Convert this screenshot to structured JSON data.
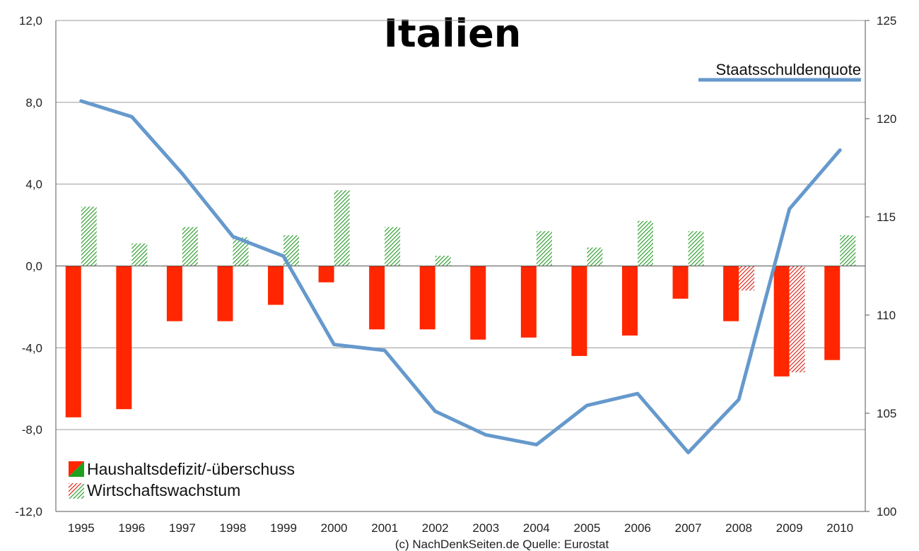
{
  "chart_data": {
    "type": "bar",
    "title": "Italien",
    "categories": [
      "1995",
      "1996",
      "1997",
      "1998",
      "1999",
      "2000",
      "2001",
      "2002",
      "2003",
      "2004",
      "2005",
      "2006",
      "2007",
      "2008",
      "2009",
      "2010"
    ],
    "y_left": {
      "range": [
        -12,
        12
      ],
      "ticks": [
        "12,0",
        "8,0",
        "4,0",
        "0,0",
        "-4,0",
        "-8,0",
        "-12,0"
      ],
      "tick_values": [
        12,
        8,
        4,
        0,
        -4,
        -8,
        -12
      ]
    },
    "y_right": {
      "range": [
        100,
        125
      ],
      "ticks": [
        "125",
        "120",
        "115",
        "110",
        "105",
        "100"
      ],
      "tick_values": [
        125,
        120,
        115,
        110,
        105,
        100
      ]
    },
    "grid": true,
    "series": [
      {
        "name": "Haushaltsdefizit/-überschuss",
        "kind": "bar",
        "axis": "left",
        "values": [
          -7.4,
          -7.0,
          -2.7,
          -2.7,
          -1.9,
          -0.8,
          -3.1,
          -3.1,
          -3.6,
          -3.5,
          -4.4,
          -3.4,
          -1.6,
          -2.7,
          -5.4,
          -4.6
        ]
      },
      {
        "name": "Wirtschaftswachstum",
        "kind": "hatched-bar",
        "axis": "left",
        "values": [
          2.9,
          1.1,
          1.9,
          1.4,
          1.5,
          3.7,
          1.9,
          0.5,
          0.0,
          1.7,
          0.9,
          2.2,
          1.7,
          -1.2,
          -5.2,
          1.5
        ]
      },
      {
        "name": "Staatsschuldenquote",
        "kind": "line",
        "axis": "right",
        "values": [
          120.9,
          120.1,
          117.2,
          114.0,
          113.0,
          108.5,
          108.2,
          105.1,
          103.9,
          103.4,
          105.4,
          106.0,
          103.0,
          105.7,
          115.4,
          118.4
        ]
      }
    ],
    "legend": {
      "placement": "bottom-left",
      "entries": [
        "Haushaltsdefizit/-überschuss",
        "Wirtschaftswachstum"
      ]
    },
    "line_label": "Staatsschuldenquote",
    "source": "(c) NachDenkSeiten.de Quelle: Eurostat",
    "colors": {
      "deficit": "#ff2600",
      "growth": "#2e9e2e",
      "growth_negative": "#d92a1f",
      "debt_line": "#6699cc",
      "grid": "#9a9a9a"
    }
  }
}
